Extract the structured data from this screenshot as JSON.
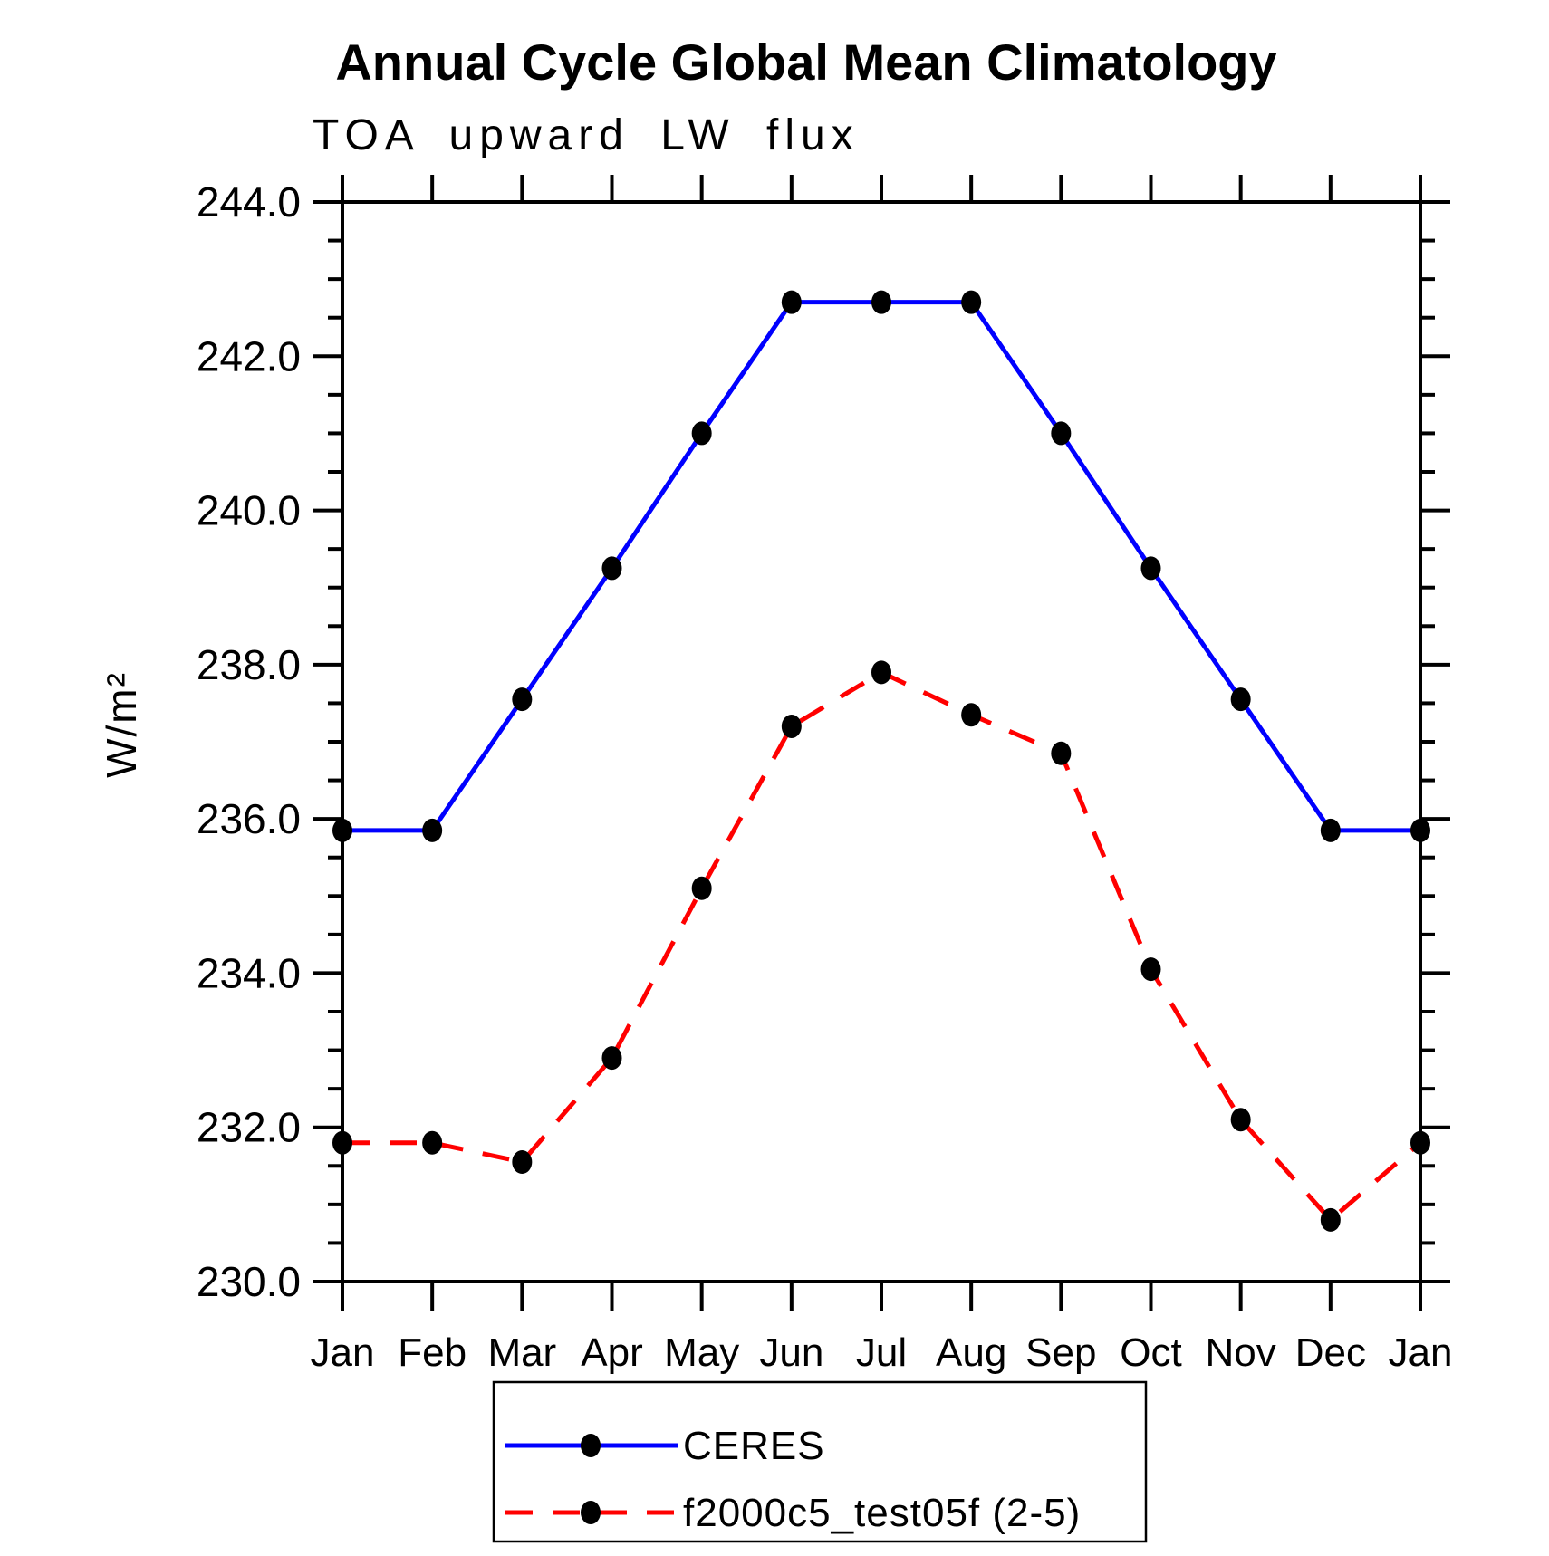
{
  "chart_data": {
    "type": "line",
    "title": "Annual Cycle Global Mean Climatology",
    "subtitle": "TOA upward LW flux",
    "ylabel": "W/m²",
    "xlabel": "",
    "categories": [
      "Jan",
      "Feb",
      "Mar",
      "Apr",
      "May",
      "Jun",
      "Jul",
      "Aug",
      "Sep",
      "Oct",
      "Nov",
      "Dec",
      "Jan"
    ],
    "ylim": [
      230.0,
      244.0
    ],
    "ytick_step": 2.0,
    "ytick_minor_step": 0.5,
    "ytick_labels": [
      "230.0",
      "232.0",
      "234.0",
      "236.0",
      "238.0",
      "240.0",
      "242.0",
      "244.0"
    ],
    "grid": false,
    "legend_position": "bottom-center",
    "series": [
      {
        "name": "CERES",
        "color": "#0000ff",
        "line_style": "solid",
        "marker": "filled-circle",
        "marker_color": "#000000",
        "values": [
          235.85,
          235.85,
          237.55,
          239.25,
          241.0,
          242.7,
          242.7,
          242.7,
          241.0,
          239.25,
          237.55,
          235.85,
          235.85
        ]
      },
      {
        "name": "f2000c5_test05f (2-5)",
        "color": "#ff0000",
        "line_style": "dashed",
        "marker": "filled-circle",
        "marker_color": "#000000",
        "values": [
          231.8,
          231.8,
          231.55,
          232.9,
          235.1,
          237.2,
          237.9,
          237.35,
          236.85,
          234.05,
          232.1,
          230.8,
          231.8
        ]
      }
    ]
  }
}
